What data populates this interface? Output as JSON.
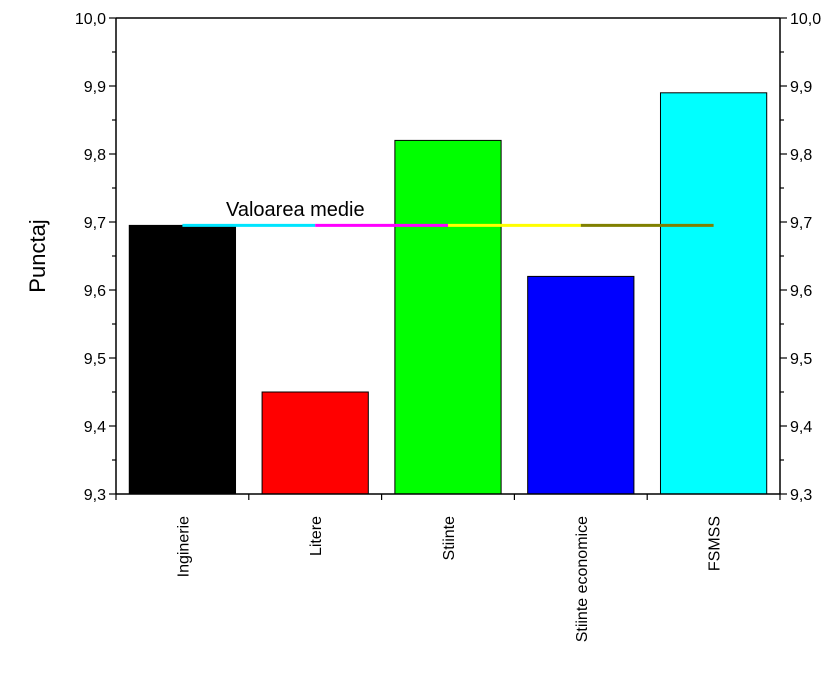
{
  "chart_data": {
    "type": "bar",
    "title": "",
    "xlabel": "",
    "ylabel": "Punctaj",
    "ylim": [
      9.3,
      10.0
    ],
    "y_ticks": [
      "9,3",
      "9,4",
      "9,5",
      "9,6",
      "9,7",
      "9,8",
      "9,9",
      "10,0"
    ],
    "categories": [
      "Inginerie",
      "Litere",
      "Stiinte",
      "Stiinte economice",
      "FSMSS"
    ],
    "values": [
      9.695,
      9.45,
      9.82,
      9.62,
      9.89
    ],
    "bar_colors": [
      "#000000",
      "#ff0000",
      "#00ff00",
      "#0000ff",
      "#00ffff"
    ],
    "mean_line": {
      "label": "Valoarea medie",
      "value": 9.695,
      "segment_colors": [
        "#00e5ff",
        "#ff00ff",
        "#ffff00",
        "#808000"
      ]
    },
    "secondary_y_axis": true,
    "grid": false,
    "legend": "none"
  }
}
